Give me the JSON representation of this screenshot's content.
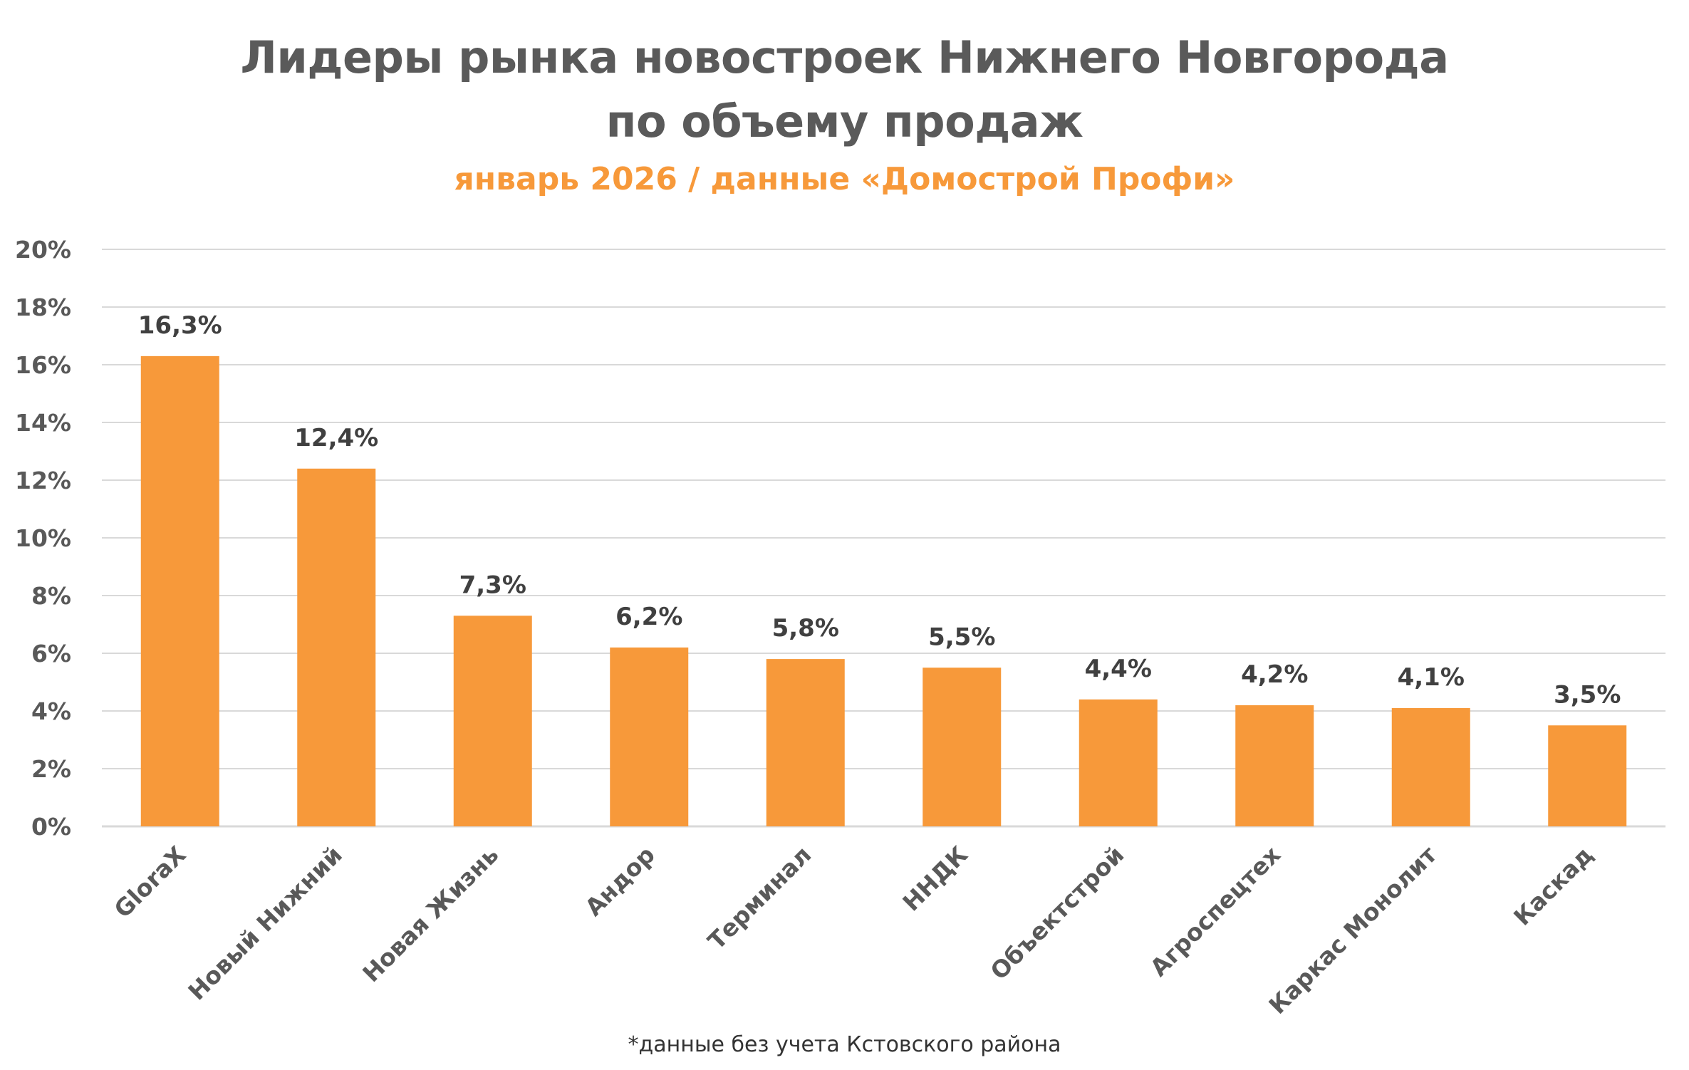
{
  "chart_data": {
    "type": "bar",
    "title": [
      "Лидеры рынка новостроек Нижнего Новгорода",
      "по объему продаж"
    ],
    "subtitle": "январь 2026 / данные «Домострой Профи»",
    "categories": [
      "GloraX",
      "Новый Нижний",
      "Новая Жизнь",
      "Андор",
      "Терминал",
      "ННДК",
      "Объектстрой",
      "Агроспецтех",
      "Каркас Монолит",
      "Каскад"
    ],
    "values": [
      16.3,
      12.4,
      7.3,
      6.2,
      5.8,
      5.5,
      4.4,
      4.2,
      4.1,
      3.5
    ],
    "value_labels": [
      "16,3%",
      "12,4%",
      "7,3%",
      "6,2%",
      "5,8%",
      "5,5%",
      "4,4%",
      "4,2%",
      "4,1%",
      "3,5%"
    ],
    "y_ticks": [
      0,
      2,
      4,
      6,
      8,
      10,
      12,
      14,
      16,
      18,
      20
    ],
    "y_tick_labels": [
      "0%",
      "2%",
      "4%",
      "6%",
      "8%",
      "10%",
      "12%",
      "14%",
      "16%",
      "18%",
      "20%"
    ],
    "ylim": [
      0,
      20
    ],
    "xlabel": "",
    "ylabel": "",
    "grid": true,
    "legend": "none",
    "bar_color": "#f7993a",
    "grid_color": "#d9d9d9",
    "axis_text_color": "#595959",
    "label_text_color": "#404040"
  },
  "footnote": "*данные без учета Кстовского района"
}
